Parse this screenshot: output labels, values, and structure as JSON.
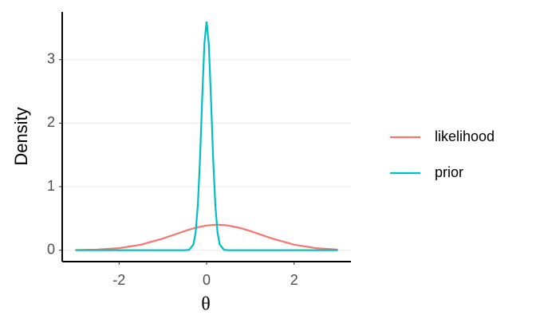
{
  "chart_data": {
    "type": "line",
    "x_label": "θ",
    "y_label": "Density",
    "x": [
      -3,
      -2.5,
      -2,
      -1.5,
      -1,
      -0.75,
      -0.5,
      -0.4,
      -0.3,
      -0.25,
      -0.2,
      -0.15,
      -0.1,
      -0.05,
      0,
      0.05,
      0.1,
      0.15,
      0.2,
      0.25,
      0.3,
      0.4,
      0.5,
      0.75,
      1,
      1.5,
      2,
      2.5,
      3
    ],
    "series": [
      {
        "name": "likelihood",
        "color": "#f8766d",
        "values": [
          0.002,
          0.009,
          0.032,
          0.086,
          0.183,
          0.242,
          0.301,
          0.323,
          0.343,
          0.352,
          0.361,
          0.368,
          0.375,
          0.381,
          0.387,
          0.391,
          0.395,
          0.397,
          0.399,
          0.399,
          0.399,
          0.395,
          0.387,
          0.352,
          0.301,
          0.183,
          0.086,
          0.032,
          0.009
        ]
      },
      {
        "name": "prior",
        "color": "#00bfc4",
        "values": [
          0,
          0,
          0,
          0,
          0,
          0,
          0,
          0.005,
          0.09,
          0.28,
          0.71,
          1.44,
          2.4,
          3.25,
          3.6,
          3.25,
          2.4,
          1.44,
          0.71,
          0.28,
          0.09,
          0.005,
          0,
          0,
          0,
          0,
          0,
          0,
          0
        ]
      }
    ],
    "xlim": [
      -3.3,
      3.3
    ],
    "ylim": [
      -0.18,
      3.75
    ],
    "xticks": [
      -2,
      0,
      2
    ],
    "yticks": [
      0,
      1,
      2,
      3
    ],
    "grid": true,
    "legend": "right"
  }
}
